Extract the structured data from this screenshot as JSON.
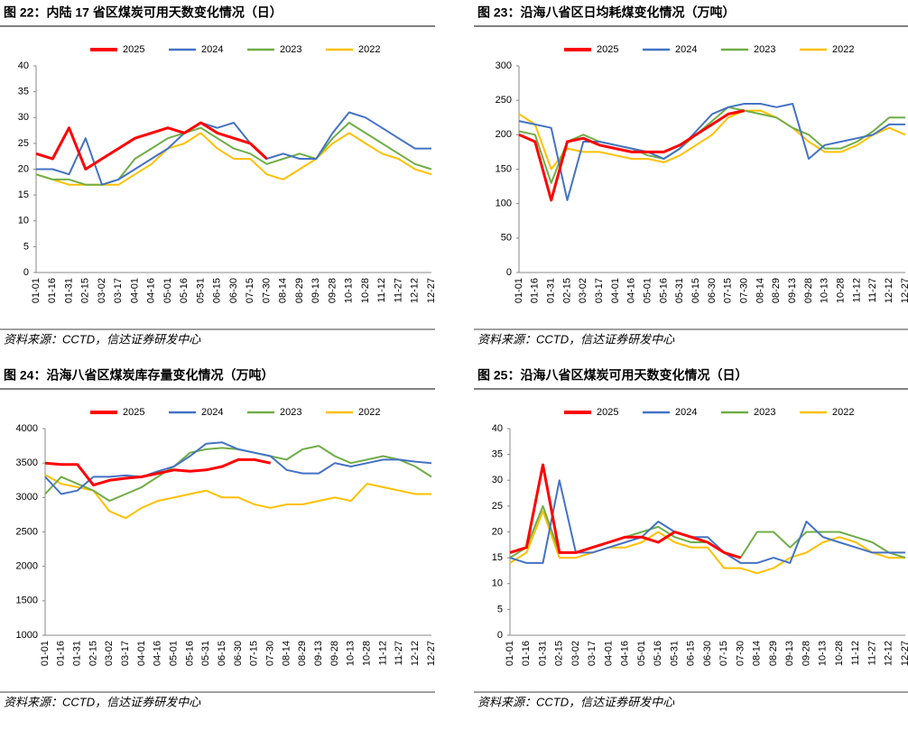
{
  "chart_data": [
    {
      "type": "line",
      "title": "图 22：内陆 17 省区煤炭可用天数变化情况（日）",
      "source": "资料来源：CCTD，信达证券研发中心",
      "categories": [
        "01-01",
        "01-16",
        "01-31",
        "02-15",
        "03-02",
        "03-17",
        "04-01",
        "04-16",
        "05-01",
        "05-16",
        "05-31",
        "06-15",
        "06-30",
        "07-15",
        "07-30",
        "08-14",
        "08-29",
        "09-13",
        "09-28",
        "10-13",
        "10-28",
        "11-12",
        "11-27",
        "12-12",
        "12-27"
      ],
      "ylim": [
        0,
        40
      ],
      "yticks": [
        0,
        5,
        10,
        15,
        20,
        25,
        30,
        35,
        40
      ],
      "series": [
        {
          "name": "2025",
          "color": "#ff0000",
          "values": [
            23,
            22,
            28,
            20,
            22,
            24,
            26,
            27,
            28,
            27,
            29,
            27,
            26,
            25,
            22,
            null,
            null,
            null,
            null,
            null,
            null,
            null,
            null,
            null,
            null
          ]
        },
        {
          "name": "2024",
          "color": "#4472c4",
          "values": [
            20,
            20,
            19,
            26,
            17,
            18,
            20,
            22,
            24,
            27,
            29,
            28,
            29,
            25,
            22,
            23,
            22,
            22,
            27,
            31,
            30,
            28,
            26,
            24,
            24
          ]
        },
        {
          "name": "2023",
          "color": "#70ad47",
          "values": [
            19,
            18,
            18,
            17,
            17,
            18,
            22,
            24,
            26,
            27,
            28,
            26,
            24,
            23,
            21,
            22,
            23,
            22,
            26,
            29,
            27,
            25,
            23,
            21,
            20
          ]
        },
        {
          "name": "2022",
          "color": "#ffc000",
          "values": [
            19,
            18,
            17,
            17,
            17,
            17,
            19,
            21,
            24,
            25,
            27,
            24,
            22,
            22,
            19,
            18,
            20,
            22,
            25,
            27,
            25,
            23,
            22,
            20,
            19
          ]
        }
      ]
    },
    {
      "type": "line",
      "title": "图 23：沿海八省区日均耗煤变化情况（万吨）",
      "source": "资料来源：CCTD，信达证券研发中心",
      "categories": [
        "01-01",
        "01-16",
        "01-31",
        "02-15",
        "03-02",
        "03-17",
        "04-01",
        "04-16",
        "05-01",
        "05-16",
        "05-31",
        "06-15",
        "06-30",
        "07-15",
        "07-30",
        "08-14",
        "08-29",
        "09-13",
        "09-28",
        "10-13",
        "10-28",
        "11-12",
        "11-27",
        "12-12",
        "12-27"
      ],
      "ylim": [
        0,
        300
      ],
      "yticks": [
        0,
        50,
        100,
        150,
        200,
        250,
        300
      ],
      "series": [
        {
          "name": "2025",
          "color": "#ff0000",
          "values": [
            200,
            190,
            105,
            190,
            195,
            185,
            180,
            175,
            175,
            175,
            185,
            200,
            215,
            230,
            235,
            null,
            null,
            null,
            null,
            null,
            null,
            null,
            null,
            null,
            null
          ]
        },
        {
          "name": "2024",
          "color": "#4472c4",
          "values": [
            220,
            215,
            210,
            105,
            190,
            190,
            185,
            180,
            175,
            165,
            180,
            205,
            230,
            240,
            245,
            245,
            240,
            245,
            165,
            185,
            190,
            195,
            200,
            215,
            215
          ]
        },
        {
          "name": "2023",
          "color": "#70ad47",
          "values": [
            205,
            200,
            130,
            190,
            200,
            190,
            185,
            180,
            170,
            165,
            180,
            200,
            220,
            240,
            235,
            230,
            225,
            210,
            200,
            180,
            180,
            190,
            205,
            225,
            225
          ]
        },
        {
          "name": "2022",
          "color": "#ffc000",
          "values": [
            230,
            215,
            150,
            180,
            175,
            175,
            170,
            165,
            165,
            160,
            170,
            185,
            200,
            225,
            235,
            235,
            225,
            210,
            190,
            175,
            175,
            185,
            200,
            210,
            200
          ]
        }
      ]
    },
    {
      "type": "line",
      "title": "图 24：沿海八省区煤炭库存量变化情况（万吨）",
      "source": "资料来源：CCTD，信达证券研发中心",
      "categories": [
        "01-01",
        "01-16",
        "01-31",
        "02-15",
        "03-02",
        "03-17",
        "04-01",
        "04-16",
        "05-01",
        "05-16",
        "05-31",
        "06-15",
        "06-30",
        "07-15",
        "07-30",
        "08-14",
        "08-29",
        "09-13",
        "09-28",
        "10-13",
        "10-28",
        "11-12",
        "11-27",
        "12-12",
        "12-27"
      ],
      "ylim": [
        1000,
        4000
      ],
      "yticks": [
        1000,
        1500,
        2000,
        2500,
        3000,
        3500,
        4000
      ],
      "series": [
        {
          "name": "2025",
          "color": "#ff0000",
          "values": [
            3500,
            3480,
            3480,
            3180,
            3250,
            3280,
            3300,
            3350,
            3400,
            3380,
            3400,
            3450,
            3550,
            3550,
            3500,
            null,
            null,
            null,
            null,
            null,
            null,
            null,
            null,
            null,
            null
          ]
        },
        {
          "name": "2024",
          "color": "#4472c4",
          "values": [
            3300,
            3050,
            3100,
            3300,
            3300,
            3320,
            3300,
            3380,
            3450,
            3600,
            3780,
            3800,
            3700,
            3650,
            3600,
            3400,
            3350,
            3350,
            3500,
            3450,
            3500,
            3550,
            3550,
            3520,
            3500
          ]
        },
        {
          "name": "2023",
          "color": "#70ad47",
          "values": [
            3050,
            3300,
            3200,
            3100,
            2950,
            3050,
            3150,
            3300,
            3450,
            3650,
            3700,
            3720,
            3700,
            3650,
            3600,
            3550,
            3700,
            3750,
            3600,
            3500,
            3550,
            3600,
            3550,
            3450,
            3300
          ]
        },
        {
          "name": "2022",
          "color": "#ffc000",
          "values": [
            3330,
            3200,
            3150,
            3100,
            2800,
            2700,
            2850,
            2950,
            3000,
            3050,
            3100,
            3000,
            3000,
            2900,
            2850,
            2900,
            2900,
            2950,
            3000,
            2950,
            3200,
            3150,
            3100,
            3050,
            3050
          ]
        }
      ]
    },
    {
      "type": "line",
      "title": "图 25：沿海八省区煤炭可用天数变化情况（日）",
      "source": "资料来源：CCTD，信达证券研发中心",
      "categories": [
        "01-01",
        "01-16",
        "01-31",
        "02-15",
        "03-02",
        "03-17",
        "04-01",
        "04-16",
        "05-01",
        "05-16",
        "05-31",
        "06-15",
        "06-30",
        "07-15",
        "07-30",
        "08-14",
        "08-29",
        "09-13",
        "09-28",
        "10-13",
        "10-28",
        "11-12",
        "11-27",
        "12-12",
        "12-27"
      ],
      "ylim": [
        0,
        40
      ],
      "yticks": [
        0,
        5,
        10,
        15,
        20,
        25,
        30,
        35,
        40
      ],
      "series": [
        {
          "name": "2025",
          "color": "#ff0000",
          "values": [
            16,
            17,
            33,
            16,
            16,
            17,
            18,
            19,
            19,
            18,
            20,
            19,
            18,
            16,
            15,
            null,
            null,
            null,
            null,
            null,
            null,
            null,
            null,
            null,
            null
          ]
        },
        {
          "name": "2024",
          "color": "#4472c4",
          "values": [
            15,
            14,
            14,
            30,
            16,
            16,
            17,
            18,
            19,
            22,
            20,
            19,
            19,
            16,
            14,
            14,
            15,
            14,
            22,
            19,
            18,
            17,
            16,
            16,
            16
          ]
        },
        {
          "name": "2023",
          "color": "#70ad47",
          "values": [
            15,
            17,
            25,
            16,
            16,
            17,
            18,
            19,
            20,
            21,
            19,
            18,
            18,
            16,
            15,
            20,
            20,
            17,
            20,
            20,
            20,
            19,
            18,
            16,
            15
          ]
        },
        {
          "name": "2022",
          "color": "#ffc000",
          "values": [
            14,
            16,
            24,
            15,
            15,
            16,
            17,
            17,
            18,
            20,
            18,
            17,
            17,
            13,
            13,
            12,
            13,
            15,
            16,
            18,
            19,
            18,
            16,
            15,
            15
          ]
        }
      ]
    }
  ]
}
